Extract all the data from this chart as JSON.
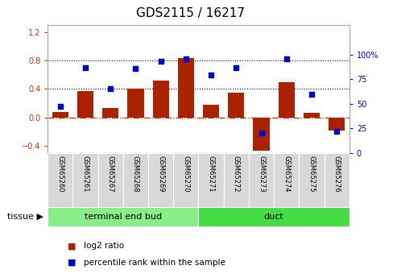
{
  "title": "GDS2115 / 16217",
  "samples": [
    "GSM65260",
    "GSM65261",
    "GSM65267",
    "GSM65268",
    "GSM65269",
    "GSM65270",
    "GSM65271",
    "GSM65272",
    "GSM65273",
    "GSM65274",
    "GSM65275",
    "GSM65276"
  ],
  "log2_ratio": [
    0.07,
    0.37,
    0.13,
    0.41,
    0.52,
    0.84,
    0.18,
    0.35,
    -0.47,
    0.5,
    0.06,
    -0.18
  ],
  "percentile_rank": [
    47,
    87,
    65,
    86,
    93,
    96,
    79,
    87,
    20,
    96,
    60,
    22
  ],
  "bar_color": "#aa2200",
  "dot_color": "#0000cc",
  "ylim_left": [
    -0.5,
    1.3
  ],
  "ylim_right": [
    0,
    130
  ],
  "yticks_left": [
    -0.4,
    0.0,
    0.4,
    0.8,
    1.2
  ],
  "yticks_right": [
    0,
    25,
    50,
    75,
    100
  ],
  "hlines_dotted": [
    0.4,
    0.8
  ],
  "hline_zero": 0.0,
  "tissue_groups": [
    {
      "label": "terminal end bud",
      "start": 0,
      "end": 6,
      "color": "#88ee88"
    },
    {
      "label": "duct",
      "start": 6,
      "end": 12,
      "color": "#44dd44"
    }
  ],
  "tissue_label": "tissue",
  "legend_bar_label": "log2 ratio",
  "legend_dot_label": "percentile rank within the sample",
  "background_color": "#ffffff",
  "bar_edge_color": "none",
  "zero_line_color": "#cc3300",
  "left_tick_color": "#cc3300",
  "right_tick_color": "#0000cc",
  "title_fontsize": 11,
  "tick_fontsize": 7,
  "sample_fontsize": 6,
  "tissue_fontsize": 8,
  "legend_fontsize": 7.5
}
